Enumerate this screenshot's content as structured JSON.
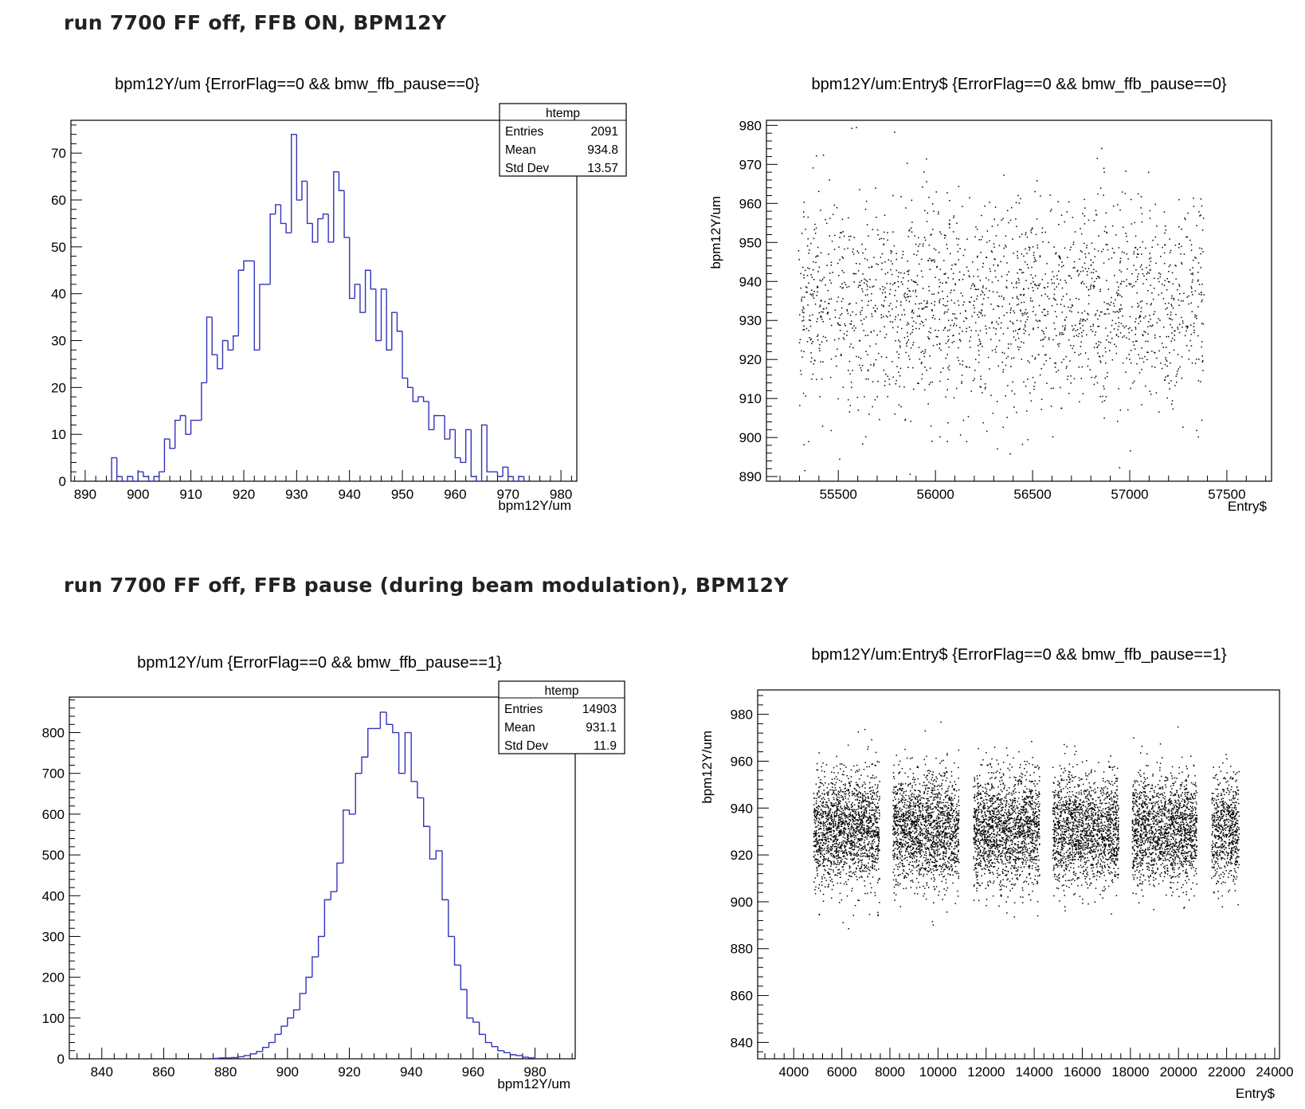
{
  "headings": [
    "run 7700 FF off, FFB ON,  BPM12Y",
    "run 7700 FF off, FFB pause (during beam modulation), BPM12Y"
  ],
  "colors": {
    "histogram_line": "#3333bb",
    "markers": "#000000",
    "frame": "#000000"
  },
  "chart_data": [
    {
      "type": "histogram",
      "title": "bpm12Y/um {ErrorFlag==0 && bmw_ffb_pause==0}",
      "xlabel": "bpm12Y/um",
      "ylabel": "",
      "xlim": [
        887.3,
        983.0
      ],
      "ylim": [
        0,
        77
      ],
      "x_ticks": [
        890,
        900,
        910,
        920,
        930,
        940,
        950,
        960,
        970,
        980
      ],
      "y_ticks": [
        0,
        10,
        20,
        30,
        40,
        50,
        60,
        70
      ],
      "bin_width": 1,
      "bin_start": 895,
      "values": [
        5,
        1,
        0,
        1,
        0,
        2,
        1,
        0,
        1,
        2,
        9,
        7,
        13,
        14,
        10,
        13,
        13,
        21,
        35,
        27,
        24,
        30,
        28,
        31,
        45,
        47,
        47,
        28,
        42,
        42,
        57,
        59,
        55,
        53,
        74,
        60,
        64,
        55,
        51,
        56,
        57,
        51,
        66,
        62,
        52,
        39,
        42,
        36,
        45,
        41,
        30,
        41,
        28,
        36,
        32,
        22,
        20,
        17,
        18,
        17,
        11,
        14,
        14,
        9,
        11,
        5,
        4,
        11,
        1,
        0,
        12,
        2,
        2,
        1,
        3,
        1,
        0,
        1
      ],
      "grid": false,
      "legend": {
        "position": "top-right",
        "name": "htemp",
        "entries": [
          {
            "label": "Entries",
            "value": "2091"
          },
          {
            "label": "Mean",
            "value": "934.8"
          },
          {
            "label": "Std Dev",
            "value": "13.57"
          }
        ]
      }
    },
    {
      "type": "scatter",
      "title": "bpm12Y/um:Entry$ {ErrorFlag==0 && bmw_ffb_pause==0}",
      "xlabel": "Entry$",
      "ylabel": "bpm12Y/um",
      "xlim": [
        55130,
        57730
      ],
      "ylim": [
        888.8,
        981.3
      ],
      "x_ticks": [
        55500,
        56000,
        56500,
        57000,
        57500
      ],
      "y_ticks": [
        890,
        900,
        910,
        920,
        930,
        940,
        950,
        960,
        970,
        980
      ],
      "points_count": 2091,
      "mean": 934.8,
      "std_dev": 13.57,
      "segments": [
        [
          55290,
          57380
        ]
      ],
      "grid": false
    },
    {
      "type": "histogram",
      "title": "bpm12Y/um {ErrorFlag==0 && bmw_ffb_pause==1}",
      "xlabel": "bpm12Y/um",
      "ylabel": "",
      "xlim": [
        829.5,
        993.0
      ],
      "ylim": [
        0,
        887
      ],
      "x_ticks": [
        840,
        860,
        880,
        900,
        920,
        940,
        960,
        980
      ],
      "y_ticks": [
        0,
        100,
        200,
        300,
        400,
        500,
        600,
        700,
        800
      ],
      "bin_width": 2,
      "bin_start": 876,
      "values": [
        1,
        2,
        2,
        3,
        5,
        8,
        12,
        18,
        28,
        40,
        60,
        80,
        100,
        120,
        160,
        200,
        250,
        300,
        390,
        410,
        480,
        610,
        600,
        700,
        740,
        810,
        810,
        850,
        820,
        800,
        700,
        800,
        680,
        640,
        570,
        490,
        510,
        390,
        300,
        230,
        170,
        100,
        90,
        60,
        40,
        30,
        20,
        15,
        10,
        8,
        4,
        2
      ],
      "grid": false,
      "legend": {
        "position": "top-right",
        "name": "htemp",
        "entries": [
          {
            "label": "Entries",
            "value": "14903"
          },
          {
            "label": "Mean",
            "value": "931.1"
          },
          {
            "label": "Std Dev",
            "value": "11.9"
          }
        ]
      }
    },
    {
      "type": "scatter",
      "title": "bpm12Y/um:Entry$ {ErrorFlag==0 && bmw_ffb_pause==1}",
      "xlabel": "Entry$",
      "ylabel": "bpm12Y/um",
      "xlim": [
        2500,
        24200
      ],
      "ylim": [
        833,
        990.4
      ],
      "x_ticks": [
        4000,
        6000,
        8000,
        10000,
        12000,
        14000,
        16000,
        18000,
        20000,
        22000,
        24000
      ],
      "y_ticks": [
        840,
        860,
        880,
        900,
        920,
        940,
        960,
        980
      ],
      "points_count": 14903,
      "mean": 931.1,
      "std_dev": 11.9,
      "segments": [
        [
          4800,
          7550
        ],
        [
          8100,
          10850
        ],
        [
          11450,
          14200
        ],
        [
          14750,
          17500
        ],
        [
          18050,
          20750
        ],
        [
          21350,
          22500
        ]
      ],
      "grid": false
    }
  ]
}
